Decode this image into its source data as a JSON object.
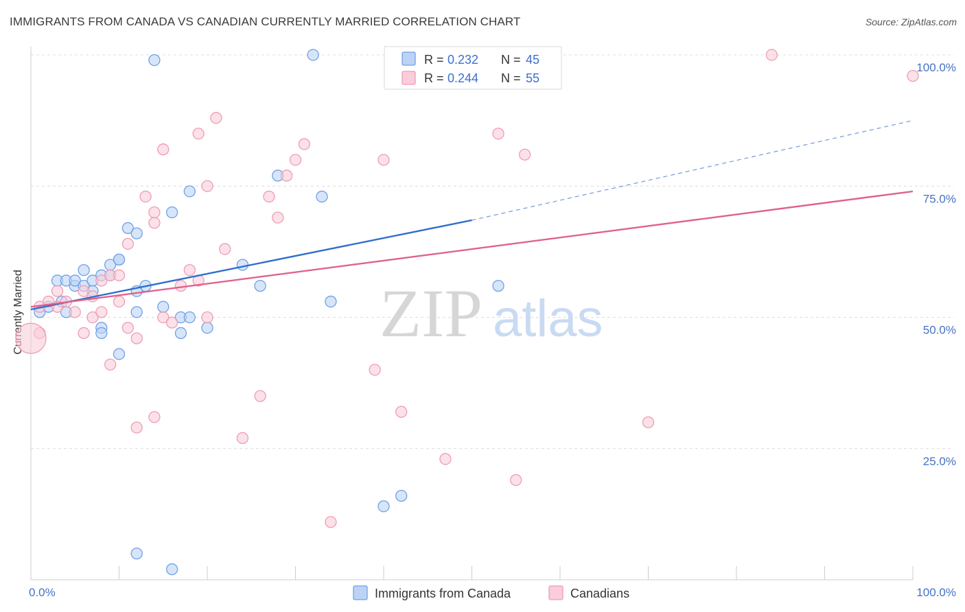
{
  "title": "IMMIGRANTS FROM CANADA VS CANADIAN CURRENTLY MARRIED CORRELATION CHART",
  "source": "Source: ZipAtlas.com",
  "watermark": {
    "zip": "ZIP",
    "atlas": "atlas"
  },
  "chart_data": {
    "type": "scatter",
    "xlabel": "",
    "ylabel": "Currently Married",
    "xlim": [
      0,
      100
    ],
    "ylim": [
      0,
      100
    ],
    "x_tick_labels": {
      "min": "0.0%",
      "max": "100.0%"
    },
    "y_ticks": [
      {
        "value": 25,
        "label": "25.0%"
      },
      {
        "value": 50,
        "label": "50.0%"
      },
      {
        "value": 75,
        "label": "75.0%"
      },
      {
        "value": 100,
        "label": "100.0%"
      }
    ],
    "grid": true,
    "legend": {
      "position": "top-center",
      "entries": [
        {
          "r_label": "R =",
          "r_value": "0.232",
          "n_label": "N =",
          "n_value": "45"
        },
        {
          "r_label": "R =",
          "r_value": "0.244",
          "n_label": "N =",
          "n_value": "55"
        }
      ]
    },
    "series": [
      {
        "name": "Immigrants from Canada",
        "color": "#6fa0e6",
        "fill": "#bcd3f5",
        "trend": {
          "x0": 0,
          "y0": 51.5,
          "x1": 50,
          "y1": 68.5,
          "dash_to_x": 100,
          "dash_to_y": 87.5,
          "color": "#2f6fcb"
        },
        "points": [
          [
            1,
            51
          ],
          [
            2,
            52
          ],
          [
            3,
            57
          ],
          [
            3.5,
            53
          ],
          [
            4,
            57
          ],
          [
            4,
            51
          ],
          [
            5,
            56
          ],
          [
            5,
            57
          ],
          [
            6,
            59
          ],
          [
            6,
            56
          ],
          [
            7,
            57
          ],
          [
            7,
            55
          ],
          [
            8,
            48
          ],
          [
            8,
            47
          ],
          [
            8,
            58
          ],
          [
            9,
            58
          ],
          [
            9,
            60
          ],
          [
            10,
            61
          ],
          [
            10,
            61
          ],
          [
            10,
            43
          ],
          [
            11,
            67
          ],
          [
            12,
            66
          ],
          [
            12,
            55
          ],
          [
            12,
            51
          ],
          [
            12,
            5
          ],
          [
            13,
            56
          ],
          [
            14,
            99
          ],
          [
            15,
            52
          ],
          [
            16,
            70
          ],
          [
            16,
            2
          ],
          [
            17,
            50
          ],
          [
            17,
            47
          ],
          [
            18,
            74
          ],
          [
            18,
            50
          ],
          [
            20,
            48
          ],
          [
            24,
            60
          ],
          [
            26,
            56
          ],
          [
            28,
            77
          ],
          [
            32,
            100
          ],
          [
            33,
            73
          ],
          [
            34,
            53
          ],
          [
            40,
            14
          ],
          [
            42,
            16
          ],
          [
            47,
            100
          ],
          [
            53,
            56
          ]
        ]
      },
      {
        "name": "Canadians",
        "color": "#ef9cb4",
        "fill": "#f9cdd9",
        "trend": {
          "x0": 0,
          "y0": 52,
          "x1": 100,
          "y1": 74,
          "color": "#e0628c"
        },
        "points": [
          [
            1,
            52
          ],
          [
            2,
            53
          ],
          [
            3,
            52
          ],
          [
            3,
            55
          ],
          [
            4,
            53
          ],
          [
            5,
            51
          ],
          [
            6,
            55
          ],
          [
            6,
            47
          ],
          [
            7,
            54
          ],
          [
            7,
            50
          ],
          [
            8,
            51
          ],
          [
            8,
            57
          ],
          [
            9,
            58
          ],
          [
            9,
            41
          ],
          [
            10,
            53
          ],
          [
            10,
            58
          ],
          [
            11,
            64
          ],
          [
            11,
            48
          ],
          [
            12,
            29
          ],
          [
            12,
            46
          ],
          [
            13,
            73
          ],
          [
            14,
            68
          ],
          [
            14,
            31
          ],
          [
            14,
            70
          ],
          [
            15,
            50
          ],
          [
            15,
            82
          ],
          [
            16,
            49
          ],
          [
            17,
            56
          ],
          [
            18,
            59
          ],
          [
            19,
            57
          ],
          [
            19,
            85
          ],
          [
            20,
            75
          ],
          [
            20,
            50
          ],
          [
            21,
            88
          ],
          [
            22,
            63
          ],
          [
            24,
            27
          ],
          [
            26,
            35
          ],
          [
            27,
            73
          ],
          [
            28,
            69
          ],
          [
            29,
            77
          ],
          [
            30,
            80
          ],
          [
            31,
            83
          ],
          [
            34,
            11
          ],
          [
            39,
            40
          ],
          [
            40,
            80
          ],
          [
            42,
            32
          ],
          [
            47,
            23
          ],
          [
            53,
            85
          ],
          [
            55,
            19
          ],
          [
            56,
            81
          ],
          [
            70,
            30
          ],
          [
            84,
            100
          ],
          [
            100,
            96
          ],
          [
            1,
            47
          ],
          [
            0,
            46
          ]
        ]
      }
    ]
  },
  "bottom_legend": [
    {
      "label": "Immigrants from Canada"
    },
    {
      "label": "Canadians"
    }
  ]
}
